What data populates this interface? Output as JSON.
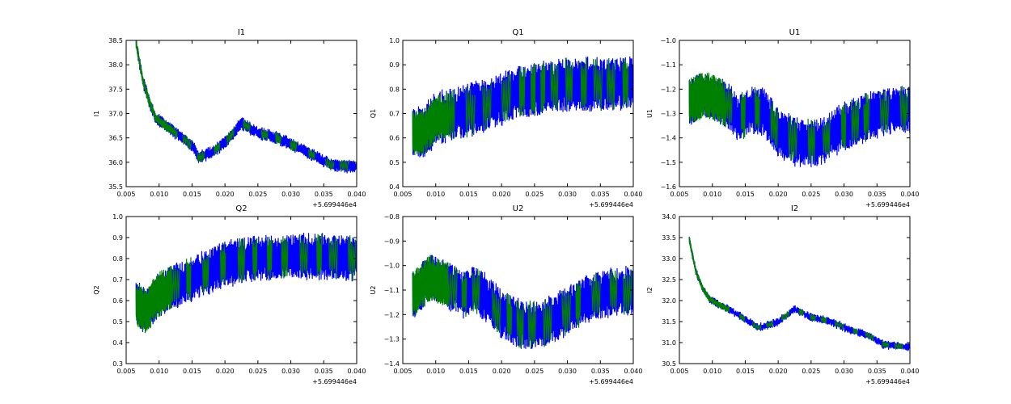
{
  "chart_data": [
    {
      "type": "line",
      "title": "I1",
      "xlabel": "",
      "ylabel": "I1",
      "x_offset_label": "+5.699446e4",
      "xlim": [
        0.005,
        0.04
      ],
      "ylim": [
        35.5,
        38.5
      ],
      "xticks": [
        "0.005",
        "0.010",
        "0.015",
        "0.020",
        "0.025",
        "0.030",
        "0.035",
        "0.040"
      ],
      "yticks": [
        "35.5",
        "36.0",
        "36.5",
        "37.0",
        "37.5",
        "38.0",
        "38.5"
      ],
      "colors": [
        "#0000ff",
        "#008000"
      ],
      "trend": {
        "x": [
          0.0065,
          0.0075,
          0.0085,
          0.0095,
          0.011,
          0.013,
          0.015,
          0.016,
          0.018,
          0.02,
          0.0225,
          0.025,
          0.028,
          0.031,
          0.034,
          0.036,
          0.04
        ],
        "y": [
          38.45,
          37.7,
          37.25,
          36.9,
          36.75,
          36.55,
          36.35,
          36.1,
          36.2,
          36.4,
          36.8,
          36.6,
          36.5,
          36.3,
          36.1,
          35.95,
          35.9
        ]
      },
      "amplitude": 0.12,
      "green_start_amplitude": 0.08
    },
    {
      "type": "line",
      "title": "Q1",
      "xlabel": "",
      "ylabel": "Q1",
      "x_offset_label": "+5.699446e4",
      "xlim": [
        0.005,
        0.04
      ],
      "ylim": [
        0.4,
        1.0
      ],
      "xticks": [
        "0.005",
        "0.010",
        "0.015",
        "0.020",
        "0.025",
        "0.030",
        "0.035",
        "0.040"
      ],
      "yticks": [
        "0.4",
        "0.5",
        "0.6",
        "0.7",
        "0.8",
        "0.9",
        "1.0"
      ],
      "colors": [
        "#0000ff",
        "#008000"
      ],
      "trend": {
        "x": [
          0.0065,
          0.008,
          0.01,
          0.013,
          0.016,
          0.019,
          0.022,
          0.025,
          0.03,
          0.035,
          0.04
        ],
        "y": [
          0.62,
          0.62,
          0.68,
          0.7,
          0.72,
          0.75,
          0.78,
          0.8,
          0.82,
          0.82,
          0.82
        ]
      },
      "amplitude": 0.11,
      "green_start_amplitude": 0.08
    },
    {
      "type": "line",
      "title": "U1",
      "xlabel": "",
      "ylabel": "U1",
      "x_offset_label": "+5.699446e4",
      "xlim": [
        0.005,
        0.04
      ],
      "ylim": [
        -1.6,
        -1.0
      ],
      "xticks": [
        "0.005",
        "0.010",
        "0.015",
        "0.020",
        "0.025",
        "0.030",
        "0.035",
        "0.040"
      ],
      "yticks": [
        "-1.6",
        "-1.5",
        "-1.4",
        "-1.3",
        "-1.2",
        "-1.1",
        "-1.0"
      ],
      "colors": [
        "#0000ff",
        "#008000"
      ],
      "trend": {
        "x": [
          0.0065,
          0.009,
          0.012,
          0.014,
          0.016,
          0.018,
          0.02,
          0.023,
          0.026,
          0.029,
          0.032,
          0.035,
          0.04
        ],
        "y": [
          -1.25,
          -1.22,
          -1.26,
          -1.32,
          -1.28,
          -1.3,
          -1.38,
          -1.42,
          -1.42,
          -1.37,
          -1.33,
          -1.3,
          -1.28
        ]
      },
      "amplitude": 0.1,
      "green_start_amplitude": 0.08
    },
    {
      "type": "line",
      "title": "Q2",
      "xlabel": "",
      "ylabel": "Q2",
      "x_offset_label": "+5.699446e4",
      "xlim": [
        0.005,
        0.04
      ],
      "ylim": [
        0.3,
        1.0
      ],
      "xticks": [
        "0.005",
        "0.010",
        "0.015",
        "0.020",
        "0.025",
        "0.030",
        "0.035",
        "0.040"
      ],
      "yticks": [
        "0.3",
        "0.4",
        "0.5",
        "0.6",
        "0.7",
        "0.8",
        "0.9",
        "1.0"
      ],
      "colors": [
        "#0000ff",
        "#008000"
      ],
      "trend": {
        "x": [
          0.0065,
          0.008,
          0.01,
          0.013,
          0.016,
          0.019,
          0.022,
          0.025,
          0.03,
          0.035,
          0.04
        ],
        "y": [
          0.58,
          0.55,
          0.63,
          0.68,
          0.72,
          0.76,
          0.79,
          0.8,
          0.81,
          0.81,
          0.8
        ]
      },
      "amplitude": 0.11,
      "green_start_amplitude": 0.09
    },
    {
      "type": "line",
      "title": "U2",
      "xlabel": "",
      "ylabel": "U2",
      "x_offset_label": "+5.699446e4",
      "xlim": [
        0.005,
        0.04
      ],
      "ylim": [
        -1.4,
        -0.8
      ],
      "xticks": [
        "0.005",
        "0.010",
        "0.015",
        "0.020",
        "0.025",
        "0.030",
        "0.035",
        "0.040"
      ],
      "yticks": [
        "-1.4",
        "-1.3",
        "-1.2",
        "-1.1",
        "-1.0",
        "-0.9",
        "-0.8"
      ],
      "colors": [
        "#0000ff",
        "#008000"
      ],
      "trend": {
        "x": [
          0.0065,
          0.009,
          0.012,
          0.014,
          0.016,
          0.018,
          0.02,
          0.023,
          0.026,
          0.029,
          0.032,
          0.035,
          0.04
        ],
        "y": [
          -1.12,
          -1.05,
          -1.08,
          -1.12,
          -1.1,
          -1.14,
          -1.2,
          -1.24,
          -1.24,
          -1.2,
          -1.15,
          -1.12,
          -1.1
        ]
      },
      "amplitude": 0.1,
      "green_start_amplitude": 0.08
    },
    {
      "type": "line",
      "title": "I2",
      "xlabel": "",
      "ylabel": "I2",
      "x_offset_label": "+5.699446e4",
      "xlim": [
        0.005,
        0.04
      ],
      "ylim": [
        30.5,
        34.0
      ],
      "xticks": [
        "0.005",
        "0.010",
        "0.015",
        "0.020",
        "0.025",
        "0.030",
        "0.035",
        "0.040"
      ],
      "yticks": [
        "30.5",
        "31.0",
        "31.5",
        "32.0",
        "32.5",
        "33.0",
        "33.5",
        "34.0"
      ],
      "colors": [
        "#0000ff",
        "#008000"
      ],
      "trend": {
        "x": [
          0.0065,
          0.0075,
          0.0085,
          0.0095,
          0.011,
          0.013,
          0.015,
          0.017,
          0.02,
          0.0225,
          0.025,
          0.028,
          0.031,
          0.034,
          0.036,
          0.04
        ],
        "y": [
          33.45,
          32.7,
          32.3,
          32.05,
          31.9,
          31.75,
          31.55,
          31.35,
          31.5,
          31.8,
          31.6,
          31.5,
          31.3,
          31.15,
          30.95,
          30.9
        ]
      },
      "amplitude": 0.08,
      "green_start_amplitude": 0.06
    }
  ]
}
